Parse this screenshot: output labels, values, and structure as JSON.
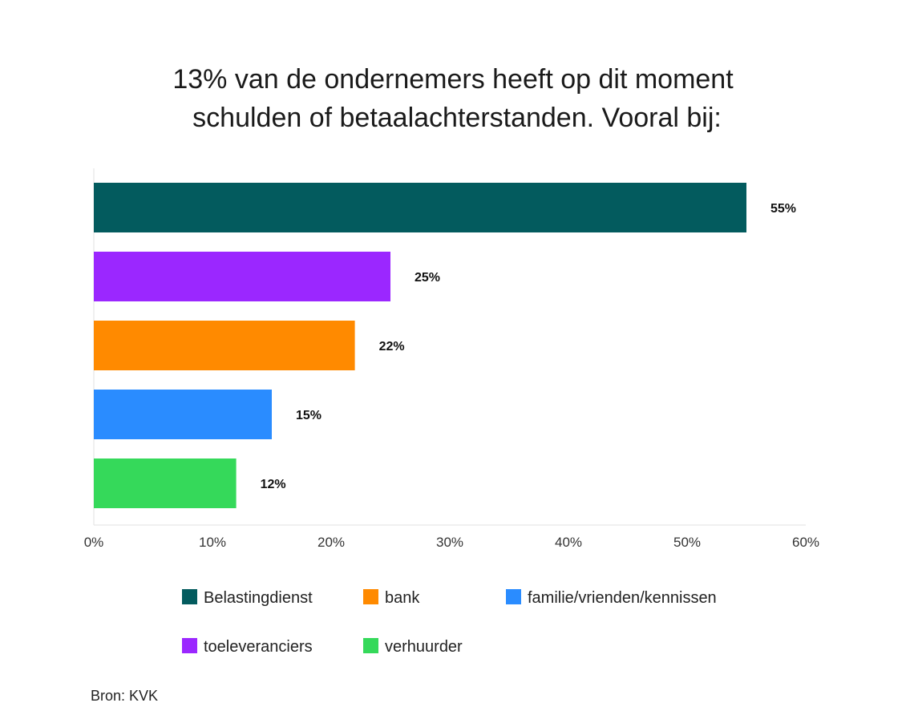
{
  "chart_data": {
    "type": "bar",
    "orientation": "horizontal",
    "title": [
      "13% van de ondernemers heeft op dit moment",
      "schulden of betaalachterstanden. Vooral bij:"
    ],
    "categories": [
      "Belastingdienst",
      "toeleveranciers",
      "bank",
      "familie/vrienden/kennissen",
      "verhuurder"
    ],
    "values": [
      55,
      25,
      22,
      15,
      12
    ],
    "data_labels": [
      "55%",
      "25%",
      "22%",
      "15%",
      "12%"
    ],
    "colors": [
      "#035B5E",
      "#9B27FF",
      "#FF8A00",
      "#2A8CFF",
      "#35D95A"
    ],
    "xlim": [
      0,
      60
    ],
    "xticks": [
      0,
      10,
      20,
      30,
      40,
      50,
      60
    ],
    "xtick_labels": [
      "0%",
      "10%",
      "20%",
      "30%",
      "40%",
      "50%",
      "60%"
    ],
    "xlabel": "",
    "ylabel": "",
    "grid": false,
    "legend": {
      "placement": "bottom",
      "entries": [
        {
          "label": "Belastingdienst",
          "color": "#035B5E"
        },
        {
          "label": "bank",
          "color": "#FF8A00"
        },
        {
          "label": "familie/vrienden/kennissen",
          "color": "#2A8CFF"
        },
        {
          "label": "toeleveranciers",
          "color": "#9B27FF"
        },
        {
          "label": "verhuurder",
          "color": "#35D95A"
        }
      ]
    },
    "source": "Bron: KVK"
  }
}
